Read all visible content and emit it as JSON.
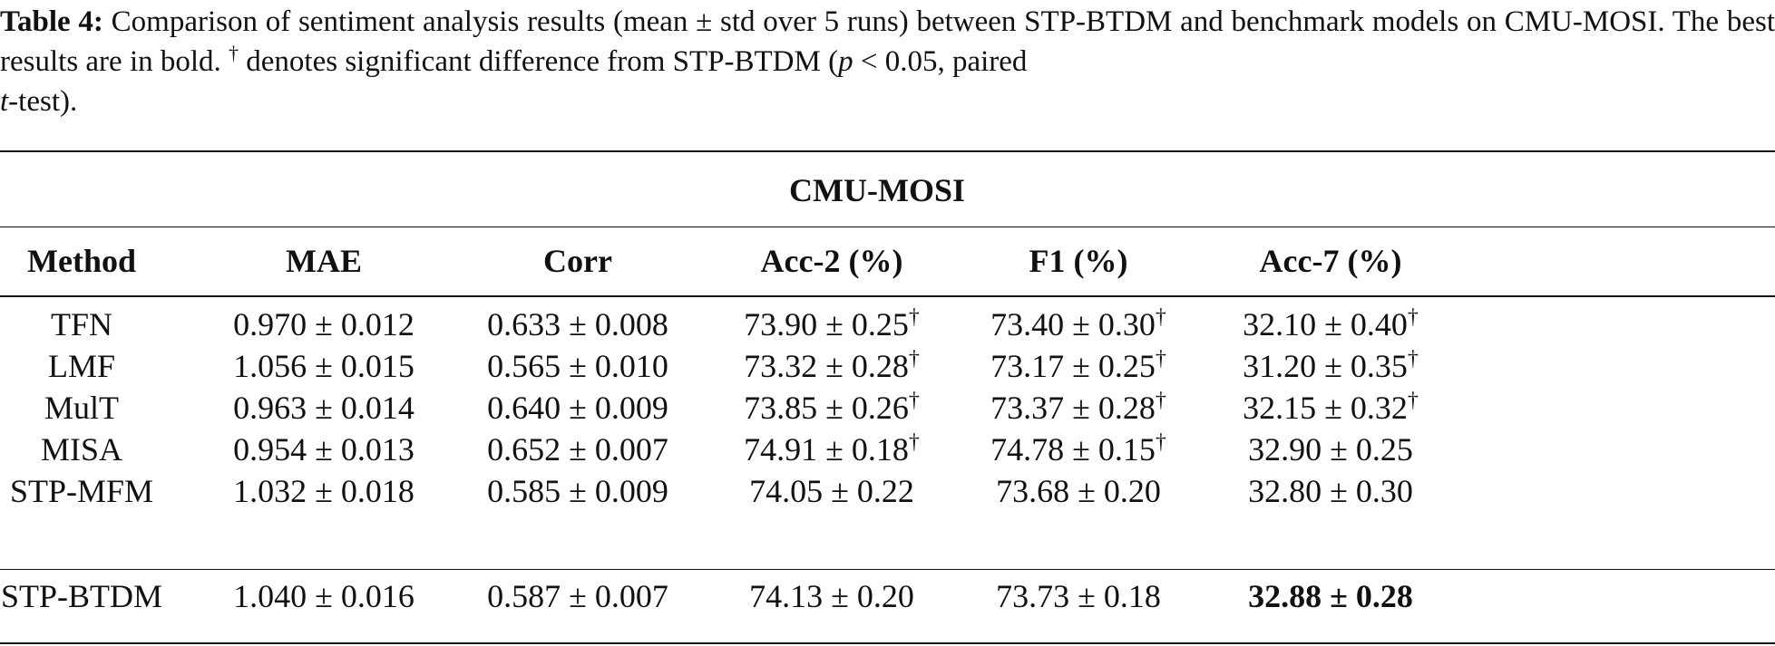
{
  "caption": {
    "label": "Table 4:",
    "line1_text": " Comparison of sentiment analysis results (mean ± std over 5 runs) between STP-BTDM and benchmark models on CMU-MOSI. The best results are in bold. ",
    "dagger": "†",
    "line2_text": " denotes significant difference from STP-BTDM (",
    "p_symbol": "p",
    "p_condition": " < 0.05, paired ",
    "t_symbol": "t",
    "tail": "-test)."
  },
  "table": {
    "group_title": "CMU-MOSI",
    "headers": [
      "Method",
      "MAE",
      "Corr",
      "Acc-2 (%)",
      "F1 (%)",
      "Acc-7 (%)"
    ],
    "rows": [
      {
        "method": "TFN",
        "mae": "0.970 ± 0.012",
        "corr": "0.633 ± 0.008",
        "acc2": "73.90 ± 0.25",
        "acc2_mark": "†",
        "f1": "73.40 ± 0.30",
        "f1_mark": "†",
        "acc7": "32.10 ± 0.40",
        "acc7_mark": "†"
      },
      {
        "method": "LMF",
        "mae": "1.056 ± 0.015",
        "corr": "0.565 ± 0.010",
        "acc2": "73.32 ± 0.28",
        "acc2_mark": "†",
        "f1": "73.17 ± 0.25",
        "f1_mark": "†",
        "acc7": "31.20 ± 0.35",
        "acc7_mark": "†"
      },
      {
        "method": "MulT",
        "mae": "0.963 ± 0.014",
        "corr": "0.640 ± 0.009",
        "acc2": "73.85 ± 0.26",
        "acc2_mark": "†",
        "f1": "73.37 ± 0.28",
        "f1_mark": "†",
        "acc7": "32.15 ± 0.32",
        "acc7_mark": "†"
      },
      {
        "method": "MISA",
        "mae": "0.954 ± 0.013",
        "corr": "0.652 ± 0.007",
        "acc2": "74.91 ± 0.18",
        "acc2_mark": "†",
        "f1": "74.78 ± 0.15",
        "f1_mark": "†",
        "acc7": "32.90 ± 0.25",
        "acc7_mark": ""
      },
      {
        "method": "STP-MFM",
        "mae": "1.032 ± 0.018",
        "corr": "0.585 ± 0.009",
        "acc2": "74.05 ± 0.22",
        "acc2_mark": "",
        "f1": "73.68 ± 0.20",
        "f1_mark": "",
        "acc7": "32.80 ± 0.30",
        "acc7_mark": ""
      }
    ],
    "final_row": {
      "method": "STP-BTDM",
      "mae": "1.040 ± 0.016",
      "corr": "0.587 ± 0.007",
      "acc2": "74.13 ± 0.20",
      "f1": "73.73 ± 0.18",
      "acc7": "32.88 ± 0.28"
    }
  }
}
